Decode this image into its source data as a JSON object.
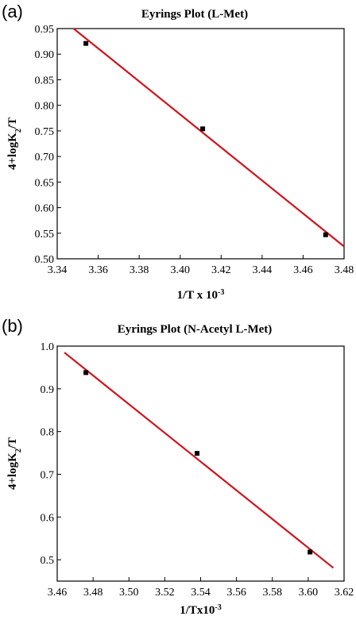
{
  "chart_data": [
    {
      "type": "scatter",
      "panel_label": "(a)",
      "title": "Eyrings Plot (L-Met)",
      "xlabel": {
        "main": "1/T x 10",
        "sup": "-3",
        "sub": "",
        "tail": ""
      },
      "ylabel": {
        "main": "4+logK",
        "sup": "",
        "sub": "2",
        "tail": "/T"
      },
      "xlim": [
        3.34,
        3.48
      ],
      "ylim": [
        0.5,
        0.95
      ],
      "x_ticks": [
        "3.34",
        "3.36",
        "3.38",
        "3.40",
        "3.42",
        "3.44",
        "3.46",
        "3.48"
      ],
      "y_ticks": [
        "0.50",
        "0.55",
        "0.60",
        "0.65",
        "0.70",
        "0.75",
        "0.80",
        "0.85",
        "0.90",
        "0.95"
      ],
      "series": [
        {
          "points": [
            [
              3.354,
              0.921
            ],
            [
              3.411,
              0.754
            ],
            [
              3.471,
              0.547
            ]
          ],
          "marker_color": "#000000"
        }
      ],
      "fit_line": {
        "x": [
          3.348,
          3.48
        ],
        "y": [
          0.95,
          0.524
        ],
        "color": "#d0141c"
      },
      "grid": false
    },
    {
      "type": "scatter",
      "panel_label": "(b)",
      "title": "Eyrings Plot (N-Acetyl L-Met)",
      "xlabel": {
        "main": "1/Tx10",
        "sup": "-3",
        "sub": "",
        "tail": ""
      },
      "ylabel": {
        "main": "4+logK",
        "sup": "",
        "sub": "2",
        "tail": "/T"
      },
      "xlim": [
        3.46,
        3.62
      ],
      "ylim": [
        0.45,
        1.0
      ],
      "x_ticks": [
        "3.46",
        "3.48",
        "3.50",
        "3.52",
        "3.54",
        "3.56",
        "3.58",
        "3.60",
        "3.62"
      ],
      "y_ticks": [
        "0.5",
        "0.6",
        "0.7",
        "0.8",
        "0.9",
        "1.0"
      ],
      "series": [
        {
          "points": [
            [
              3.476,
              0.938
            ],
            [
              3.538,
              0.749
            ],
            [
              3.601,
              0.518
            ]
          ],
          "marker_color": "#000000"
        }
      ],
      "fit_line": {
        "x": [
          3.464,
          3.614
        ],
        "y": [
          0.985,
          0.481
        ],
        "color": "#d0141c"
      },
      "grid": false
    }
  ]
}
